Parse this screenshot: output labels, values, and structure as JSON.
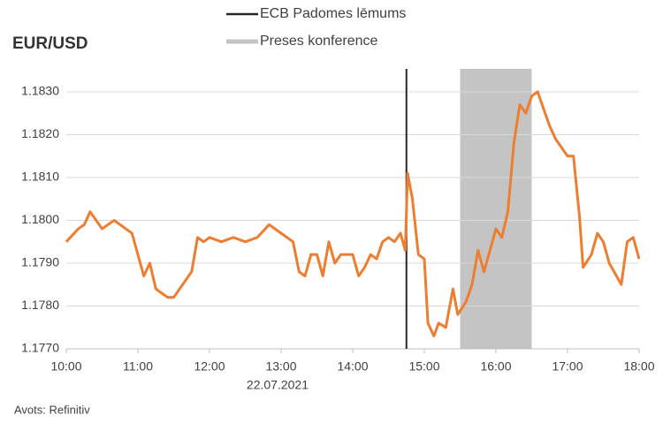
{
  "chart_data": {
    "type": "line",
    "title": "EUR/USD",
    "x_annotation": "22.07.2021",
    "source": "Avots: Refinitiv",
    "color": "#ed7d31",
    "grid": true,
    "xlim": [
      10,
      18
    ],
    "xticks": [
      {
        "value": 10,
        "label": "10:00"
      },
      {
        "value": 11,
        "label": "11:00"
      },
      {
        "value": 12,
        "label": "12:00"
      },
      {
        "value": 13,
        "label": "13:00"
      },
      {
        "value": 14,
        "label": "14:00"
      },
      {
        "value": 15,
        "label": "15:00"
      },
      {
        "value": 16,
        "label": "16:00"
      },
      {
        "value": 17,
        "label": "17:00"
      },
      {
        "value": 18,
        "label": "18:00"
      }
    ],
    "ylim": [
      1.177,
      1.183
    ],
    "yticks": [
      {
        "value": 1.177,
        "label": "1.1770"
      },
      {
        "value": 1.178,
        "label": "1.1780"
      },
      {
        "value": 1.179,
        "label": "1.1790"
      },
      {
        "value": 1.18,
        "label": "1.1800"
      },
      {
        "value": 1.181,
        "label": "1.1810"
      },
      {
        "value": 1.182,
        "label": "1.1820"
      },
      {
        "value": 1.183,
        "label": "1.1830"
      }
    ],
    "markers": [
      {
        "name": "ECB Padomes lēmums",
        "x": 14.75,
        "color": "#262626"
      }
    ],
    "bands": [
      {
        "name": "Preses konference",
        "x": [
          15.5,
          16.5
        ],
        "color": "#c4c4c4"
      }
    ],
    "x": [
      10,
      10.1667,
      10.25,
      10.3333,
      10.5,
      10.6667,
      10.8333,
      10.9167,
      11.0833,
      11.1667,
      11.25,
      11.3333,
      11.4167,
      11.5,
      11.5833,
      11.6667,
      11.75,
      11.8333,
      11.9167,
      12,
      12.1667,
      12.3333,
      12.5,
      12.6667,
      12.8333,
      13,
      13.1667,
      13.25,
      13.3333,
      13.4167,
      13.5,
      13.5833,
      13.6667,
      13.75,
      13.8333,
      14,
      14.0833,
      14.1667,
      14.25,
      14.3333,
      14.4167,
      14.5,
      14.5833,
      14.6667,
      14.7333,
      14.7667,
      14.8333,
      14.9167,
      15,
      15.05,
      15.1333,
      15.2,
      15.3,
      15.4,
      15.4667,
      15.5833,
      15.6667,
      15.75,
      15.8333,
      15.9167,
      16,
      16.0833,
      16.1667,
      16.25,
      16.3333,
      16.4167,
      16.5,
      16.5833,
      16.6667,
      16.75,
      16.8333,
      17,
      17.0833,
      17.1667,
      17.2167,
      17.3333,
      17.4167,
      17.5,
      17.5833,
      17.75,
      17.8333,
      17.9167,
      18
    ],
    "values": [
      1.1795,
      1.1798,
      1.1799,
      1.1802,
      1.1798,
      1.18,
      1.1798,
      1.1797,
      1.1787,
      1.179,
      1.1784,
      1.1783,
      1.1782,
      1.1782,
      1.1784,
      1.1786,
      1.1788,
      1.1796,
      1.1795,
      1.1796,
      1.1795,
      1.1796,
      1.1795,
      1.1796,
      1.1799,
      1.1797,
      1.1795,
      1.1788,
      1.1787,
      1.1792,
      1.1792,
      1.1787,
      1.1795,
      1.179,
      1.1792,
      1.1792,
      1.1787,
      1.1789,
      1.1792,
      1.1791,
      1.1795,
      1.1796,
      1.1795,
      1.1797,
      1.1793,
      1.1811,
      1.1805,
      1.1792,
      1.1791,
      1.1776,
      1.1773,
      1.1776,
      1.1775,
      1.1784,
      1.1778,
      1.1781,
      1.1785,
      1.1793,
      1.1788,
      1.1793,
      1.1798,
      1.1796,
      1.1802,
      1.1818,
      1.1827,
      1.1825,
      1.1829,
      1.183,
      1.1826,
      1.1822,
      1.1819,
      1.1815,
      1.1815,
      1.1801,
      1.1789,
      1.1792,
      1.1797,
      1.1795,
      1.179,
      1.1785,
      1.1795,
      1.1796,
      1.1791
    ]
  }
}
